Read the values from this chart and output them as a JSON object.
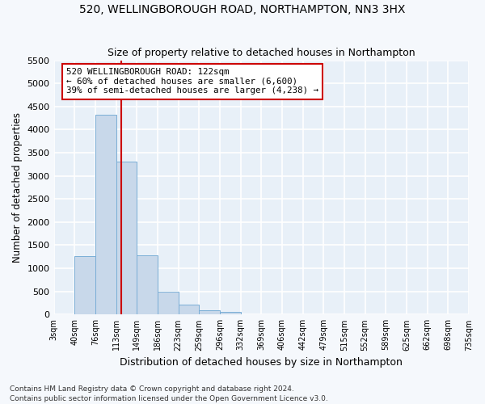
{
  "title": "520, WELLINGBOROUGH ROAD, NORTHAMPTON, NN3 3HX",
  "subtitle": "Size of property relative to detached houses in Northampton",
  "xlabel": "Distribution of detached houses by size in Northampton",
  "ylabel": "Number of detached properties",
  "bar_color": "#c8d8ea",
  "bar_edge_color": "#7aaed6",
  "background_color": "#e8f0f8",
  "grid_color": "#ffffff",
  "annotation_line_color": "#cc0000",
  "footnote": "Contains HM Land Registry data © Crown copyright and database right 2024.\nContains public sector information licensed under the Open Government Licence v3.0.",
  "bin_labels": [
    "3sqm",
    "40sqm",
    "76sqm",
    "113sqm",
    "149sqm",
    "186sqm",
    "223sqm",
    "259sqm",
    "296sqm",
    "332sqm",
    "369sqm",
    "406sqm",
    "442sqm",
    "479sqm",
    "515sqm",
    "552sqm",
    "589sqm",
    "625sqm",
    "662sqm",
    "698sqm",
    "735sqm"
  ],
  "bar_values": [
    0,
    1270,
    4330,
    3300,
    1280,
    490,
    215,
    90,
    55,
    0,
    0,
    0,
    0,
    0,
    0,
    0,
    0,
    0,
    0,
    0
  ],
  "annotation_text": "520 WELLINGBOROUGH ROAD: 122sqm\n← 60% of detached houses are smaller (6,600)\n39% of semi-detached houses are larger (4,238) →",
  "ylim": [
    0,
    5500
  ],
  "yticks": [
    0,
    500,
    1000,
    1500,
    2000,
    2500,
    3000,
    3500,
    4000,
    4500,
    5000,
    5500
  ],
  "figsize": [
    6.0,
    5.0
  ],
  "dpi": 100
}
